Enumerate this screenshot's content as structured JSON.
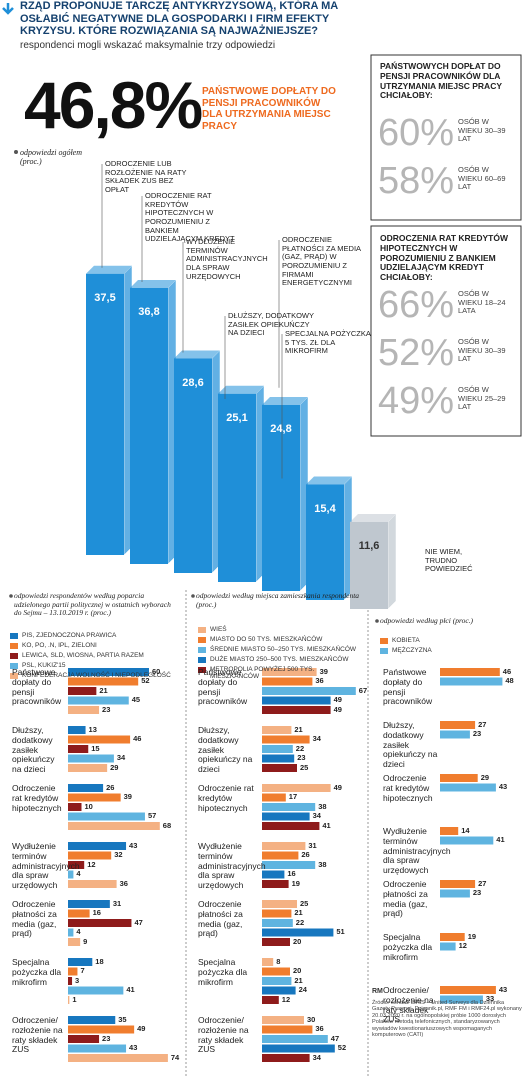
{
  "header": {
    "title": "RZĄD PROPONUJE TARCZĘ ANTYKRYZYSOWĄ, KTÓRA MA OSŁABIĆ NEGATYWNE DLA GOSPODARKI I FIRM EFEKTY KRYZYSU. KTÓRE ROZWIĄZANIA SĄ NAJWAŻNIEJSZE?",
    "subtitle": "respondenci mogli wskazać maksymalnie trzy odpowiedzi"
  },
  "highlight": {
    "value": 46.8,
    "value_label": "46,8%",
    "label": "PAŃSTWOWE DOPŁATY DO PENSJI PRACOWNIKÓW DLA UTRZYMANIA MIEJSC PRACY"
  },
  "age_boxes": [
    {
      "title": "PAŃSTWOWYCH DOPŁAT DO PENSJI PRACOWNIKÓW DLA UTRZYMANIA MIEJSC PRACY CHCIAŁOBY:",
      "items": [
        {
          "value": 60,
          "value_label": "60%",
          "label": "OSÓB W WIEKU 30–39 LAT"
        },
        {
          "value": 58,
          "value_label": "58%",
          "label": "OSÓB W WIEKU 60–69 LAT"
        }
      ]
    },
    {
      "title": "ODROCZENIA RAT KREDYTÓW HIPOTECZNYCH W POROZUMIENIU Z BANKIEM UDZIELAJĄCYM KREDYT CHCIAŁOBY:",
      "items": [
        {
          "value": 66,
          "value_label": "66%",
          "label": "OSÓB W WIEKU 18–24 LATA"
        },
        {
          "value": 52,
          "value_label": "52%",
          "label": "OSÓB W WIEKU 30–39 LAT"
        },
        {
          "value": 49,
          "value_label": "49%",
          "label": "OSÓB W WIEKU 25–29 LAT"
        }
      ]
    }
  ],
  "chart_data": [
    {
      "type": "bar3d",
      "legend": "odpowiedzi ogółem (proc.)",
      "categories": [
        "ODROCZENIE LUB ROZŁOŻENIE NA RATY SKŁADEK ZUS BEZ OPŁAT",
        "ODROCZENIE RAT KREDYTÓW HIPOTECZNYCH W POROZUMIENIU Z BANKIEM UDZIELAJĄCYM KREDYT",
        "WYDŁUŻENIE TERMINÓW ADMINISTRACYJNYCH DLA SPRAW URZĘDOWYCH",
        "ODROCZENIE PŁATNOŚCI ZA MEDIA (GAZ, PRĄD) W POROZUMIENIU Z FIRMAMI ENERGETYCZNYMI",
        "DŁUŻSZY, DODATKOWY ZASIŁEK OPIEKUŃCZY NA DZIECI",
        "SPECJALNA POŻYCZKA 5 TYS. ZŁ DLA MIKROFIRM",
        "NIE WIEM, TRUDNO POWIEDZIEĆ"
      ],
      "values": [
        37.5,
        36.8,
        28.6,
        25.1,
        24.8,
        15.4,
        11.6
      ],
      "value_labels": [
        "37,5",
        "36,8",
        "28,6",
        "25,1",
        "24,8",
        "15,4",
        "11,6"
      ],
      "colors": [
        "#1f8fd8",
        "#1f8fd8",
        "#1f8fd8",
        "#1f8fd8",
        "#1f8fd8",
        "#1f8fd8",
        "#bfc7cf"
      ]
    },
    {
      "type": "hbar",
      "title": "odpowiedzi respondentów według poparcia udzielonego partii politycznej w ostatnich wyborach do Sejmu – 13.10.2019 r. (proc.)",
      "categories": [
        "Państwowe dopłaty do pensji pracowników",
        "Dłuższy, dodatkowy zasiłek opiekuńczy na dzieci",
        "Odroczenie rat kredytów hipotecznych",
        "Wydłużenie terminów administracyjnych dla spraw urzędowych",
        "Odroczenie płatności za media (gaz, prąd)",
        "Specjalna pożyczka dla mikrofirm",
        "Odroczenie/ rozłożenie na raty składek ZUS"
      ],
      "series": [
        {
          "name": "PIS, ZJEDNOCZONA PRAWICA",
          "color": "#1777bf",
          "values": [
            60,
            13,
            26,
            43,
            31,
            18,
            35
          ]
        },
        {
          "name": "KO, PO, .N, IPL, ZIELONI",
          "color": "#f07d2e",
          "values": [
            52,
            46,
            39,
            32,
            16,
            7,
            49
          ]
        },
        {
          "name": "LEWICA, SLD, WIOSNA, PARTIA RAZEM",
          "color": "#8e1b1b",
          "values": [
            21,
            15,
            10,
            12,
            47,
            3,
            23
          ]
        },
        {
          "name": "PSL, KUKIZ'15",
          "color": "#5fb4e0",
          "values": [
            45,
            34,
            57,
            4,
            4,
            41,
            43
          ]
        },
        {
          "name": "KONFEDERACJA WOLNOŚĆ I NIEPODLEGŁOŚĆ",
          "color": "#f4b183",
          "values": [
            23,
            29,
            68,
            36,
            9,
            1,
            74
          ]
        }
      ]
    },
    {
      "type": "hbar",
      "title": "odpowiedzi według miejsca zamieszkania respondenta (proc.)",
      "categories": [
        "Państwowe dopłaty do pensji pracowników",
        "Dłuższy, dodatkowy zasiłek opiekuńczy na dzieci",
        "Odroczenie rat kredytów hipotecznych",
        "Wydłużenie terminów administracyjnych dla spraw urzędowych",
        "Odroczenie płatności za media (gaz, prąd)",
        "Specjalna pożyczka dla mikrofirm",
        "Odroczenie/ rozłożenie na raty składek ZUS"
      ],
      "series": [
        {
          "name": "WIEŚ",
          "color": "#f4b183",
          "values": [
            39,
            21,
            49,
            31,
            25,
            8,
            30
          ]
        },
        {
          "name": "MIASTO DO 50 TYS. MIESZKAŃCÓW",
          "color": "#f07d2e",
          "values": [
            36,
            34,
            17,
            26,
            21,
            20,
            36
          ]
        },
        {
          "name": "ŚREDNIE MIASTO 50–250 TYS. MIESZKAŃCÓW",
          "color": "#5fb4e0",
          "values": [
            67,
            22,
            38,
            38,
            22,
            21,
            47
          ]
        },
        {
          "name": "DUŻE MIASTO 250–500 TYS. MIESZKAŃCÓW",
          "color": "#1777bf",
          "values": [
            49,
            23,
            34,
            16,
            51,
            24,
            52
          ]
        },
        {
          "name": "METROPOLIA POWYŻEJ 500 TYS. MIESZKAŃCÓW",
          "color": "#8e1b1b",
          "values": [
            49,
            25,
            41,
            19,
            20,
            12,
            34
          ]
        }
      ]
    },
    {
      "type": "hbar",
      "title": "odpowiedzi według płci (proc.)",
      "categories": [
        "Państwowe dopłaty do pensji pracowników",
        "Dłuższy, dodatkowy zasiłek opiekuńczy na dzieci",
        "Odroczenie rat kredytów hipotecznych",
        "Wydłużenie terminów administracyjnych dla spraw urzędowych",
        "Odroczenie płatności za media (gaz, prąd)",
        "Specjalna pożyczka dla mikrofirm",
        "Odroczenie/ rozłożenie na raty składek ZUS"
      ],
      "series": [
        {
          "name": "KOBIETA",
          "color": "#f07d2e",
          "values": [
            46,
            27,
            29,
            14,
            27,
            19,
            43
          ]
        },
        {
          "name": "MĘŻCZYZNA",
          "color": "#5fb4e0",
          "values": [
            48,
            23,
            43,
            41,
            23,
            12,
            33
          ]
        }
      ]
    }
  ],
  "credit": "RM",
  "source": "Źródło: sondaż IBRiS – United Surveys dla Dziennika Gazety Prawnej, Dziennik.pl, RMF FM i RMF24.pl wykonany 20.03.2020 r. na ogólnopolskiej próbie 1000 dorosłych Polaków metodą telefonicznych, standaryzowanych wywiadów kwestionariuszowych wspomaganych komputerowo (CATI)"
}
